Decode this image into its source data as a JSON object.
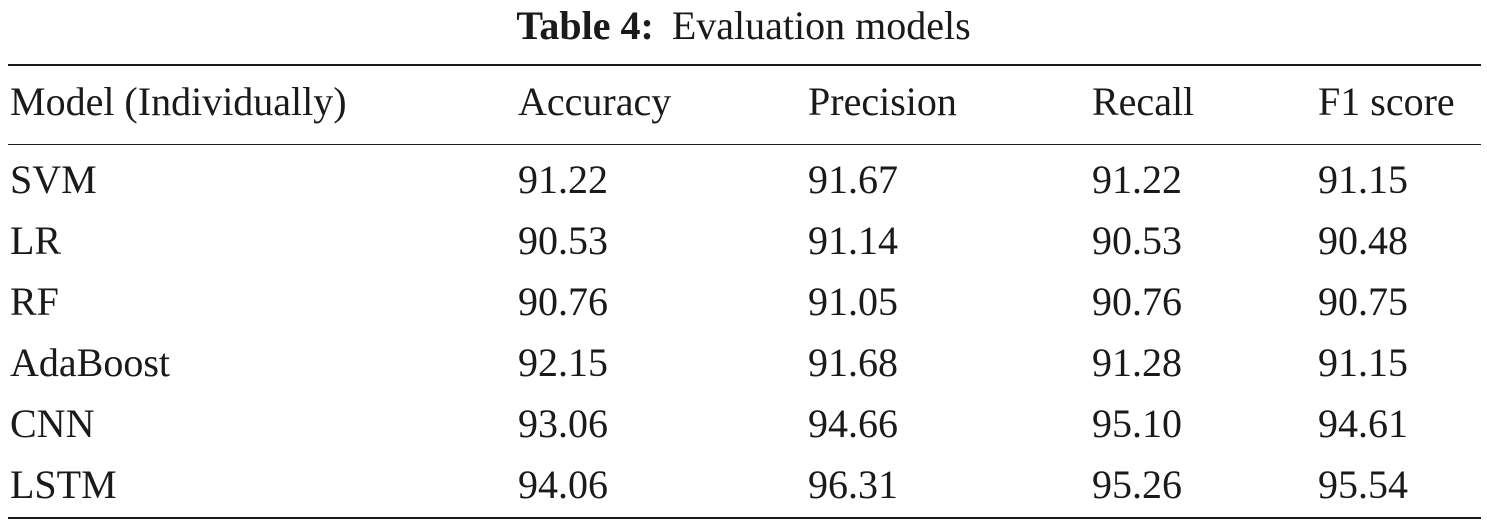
{
  "caption": {
    "label": "Table 4:",
    "text": "Evaluation models"
  },
  "table": {
    "headers": [
      "Model (Individually)",
      "Accuracy",
      "Precision",
      "Recall",
      "F1 score"
    ],
    "rows": [
      [
        "SVM",
        "91.22",
        "91.67",
        "91.22",
        "91.15"
      ],
      [
        "LR",
        "90.53",
        "91.14",
        "90.53",
        "90.48"
      ],
      [
        "RF",
        "90.76",
        "91.05",
        "90.76",
        "90.75"
      ],
      [
        "AdaBoost",
        "92.15",
        "91.68",
        "91.28",
        "91.15"
      ],
      [
        "CNN",
        "93.06",
        "94.66",
        "95.10",
        "94.61"
      ],
      [
        "LSTM",
        "94.06",
        "96.31",
        "95.26",
        "95.54"
      ]
    ]
  }
}
